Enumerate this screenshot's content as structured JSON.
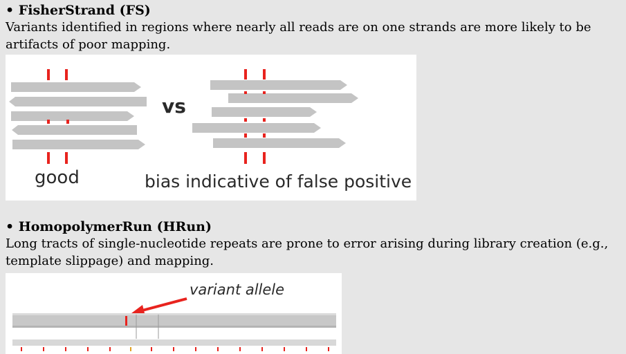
{
  "sections": [
    {
      "title": "• FisherStrand (FS)",
      "body": "Variants identified in regions where nearly all reads are on one strands are more likely to be artifacts of poor mapping.",
      "figure": {
        "vs_label": "vs",
        "good_label": "good",
        "bias_label": "bias indicative of false positive",
        "colors": {
          "read": "#c4c4c4",
          "variant": "#e8231e"
        }
      }
    },
    {
      "title": "• HomopolymerRun (HRun)",
      "body": "Long tracts of single-nucleotide repeats are prone to error arising during library creation (e.g., template slippage) and mapping.",
      "figure": {
        "callout": "variant allele",
        "colors": {
          "track": "#c8c8c8",
          "arrow": "#e8231e"
        }
      }
    }
  ]
}
